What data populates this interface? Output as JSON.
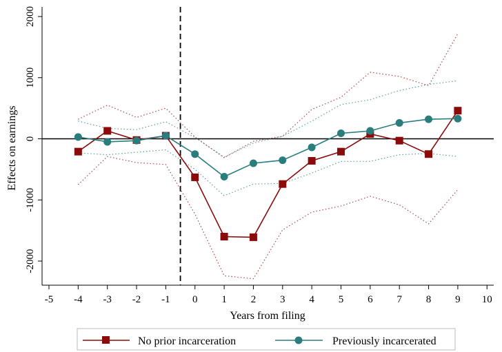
{
  "chart_data": {
    "type": "line",
    "xlabel": "Years from filing",
    "ylabel": "Effects on earnings",
    "xlim": [
      -5,
      10
    ],
    "ylim": [
      -2400,
      2000
    ],
    "x_ticks": [
      -5,
      -4,
      -3,
      -2,
      -1,
      0,
      1,
      2,
      3,
      4,
      5,
      6,
      7,
      8,
      9,
      10
    ],
    "y_ticks": [
      -2000,
      -1000,
      0,
      1000,
      2000
    ],
    "reference_vline": -0.5,
    "reference_hline": 0,
    "grid": false,
    "legend_position": "bottom",
    "series": [
      {
        "name": "No prior incarceration",
        "color": "#8b0a0a",
        "marker": "square",
        "x": [
          -4,
          -3,
          -2,
          -1,
          0,
          1,
          2,
          3,
          4,
          5,
          6,
          7,
          8,
          9
        ],
        "values": [
          -210,
          130,
          -20,
          50,
          -630,
          -1600,
          -1610,
          -740,
          -360,
          -210,
          80,
          -30,
          -250,
          460
        ],
        "ci_upper": [
          320,
          550,
          350,
          500,
          30,
          -310,
          -40,
          40,
          480,
          680,
          1090,
          1020,
          870,
          1720
        ],
        "ci_lower": [
          -750,
          -290,
          -390,
          -420,
          -1230,
          -2240,
          -2290,
          -1490,
          -1200,
          -1100,
          -940,
          -1080,
          -1390,
          -830
        ]
      },
      {
        "name": "Previously incarcerated",
        "color": "#2a7d7d",
        "marker": "circle",
        "x": [
          -4,
          -3,
          -2,
          -1,
          0,
          1,
          2,
          3,
          4,
          5,
          6,
          7,
          8,
          9
        ],
        "values": [
          30,
          -50,
          -30,
          50,
          -250,
          -620,
          -400,
          -350,
          -140,
          90,
          130,
          260,
          320,
          330
        ],
        "ci_upper": [
          290,
          170,
          150,
          280,
          20,
          -300,
          -70,
          40,
          290,
          560,
          640,
          790,
          890,
          950
        ],
        "ci_lower": [
          -230,
          -260,
          -220,
          -180,
          -500,
          -930,
          -740,
          -730,
          -560,
          -370,
          -370,
          -260,
          -240,
          -290
        ]
      }
    ]
  }
}
